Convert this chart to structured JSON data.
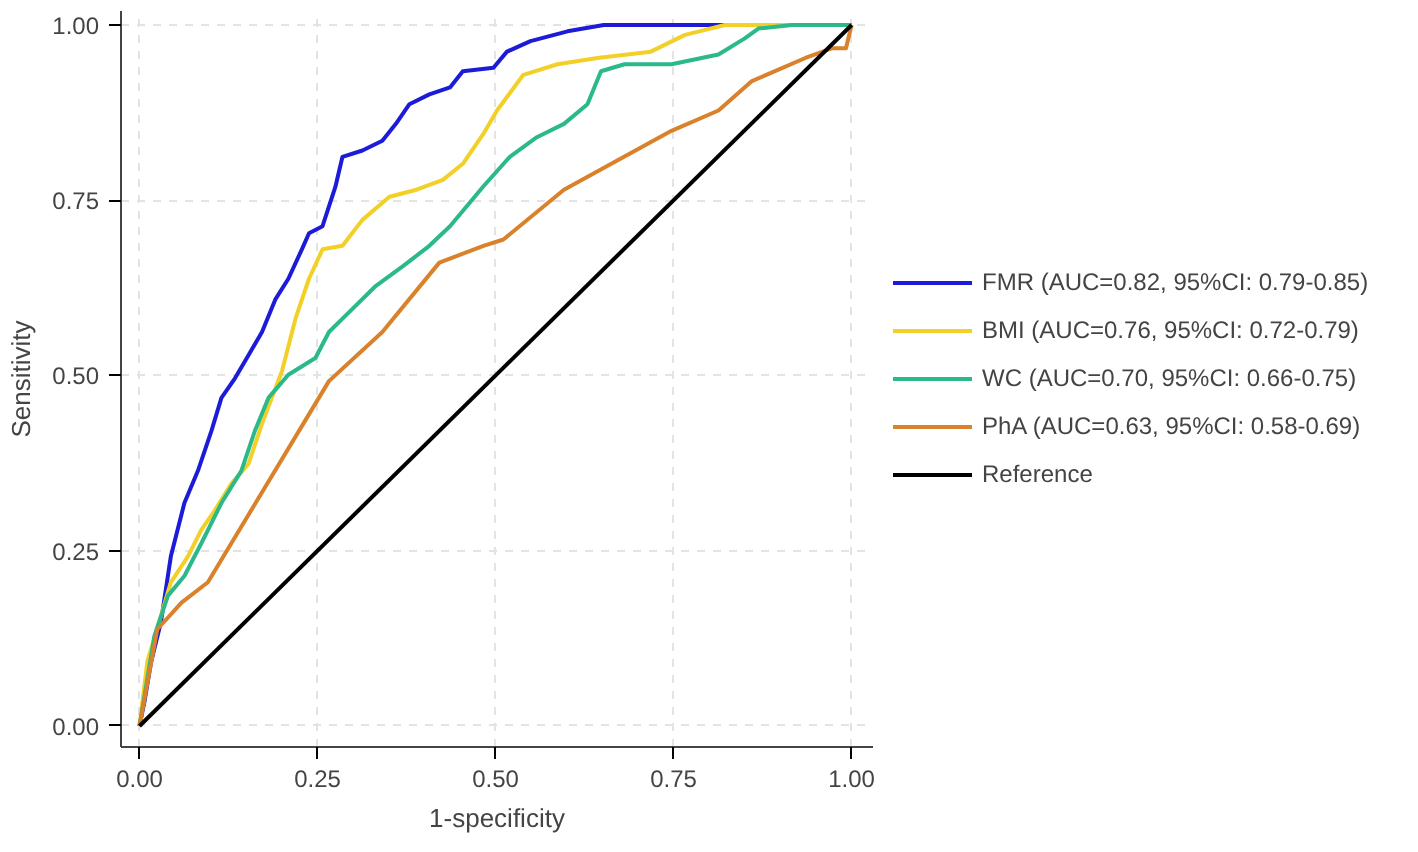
{
  "chart_data": {
    "type": "line",
    "xlabel": "1-specificity",
    "ylabel": "Sensitivity",
    "xlim": [
      -0.026,
      1.03
    ],
    "ylim": [
      -0.03,
      1.02
    ],
    "xticks": [
      {
        "value": 0,
        "label": "0.00"
      },
      {
        "value": 0.25,
        "label": "0.25"
      },
      {
        "value": 0.5,
        "label": "0.50"
      },
      {
        "value": 0.75,
        "label": "0.75"
      },
      {
        "value": 1,
        "label": "1.00"
      }
    ],
    "yticks": [
      {
        "value": 0,
        "label": "0.00"
      },
      {
        "value": 0.25,
        "label": "0.25"
      },
      {
        "value": 0.5,
        "label": "0.50"
      },
      {
        "value": 0.75,
        "label": "0.75"
      },
      {
        "value": 1,
        "label": "1.00"
      }
    ],
    "grid": true,
    "legend": "right",
    "line_style": "solid",
    "series": [
      {
        "name": "FMR (AUC=0.82, 95%CI: 0.79-0.85)",
        "color": "#1c1cd8",
        "x": [
          0,
          0.007,
          0.016,
          0.03,
          0.044,
          0.063,
          0.082,
          0.101,
          0.115,
          0.134,
          0.153,
          0.172,
          0.191,
          0.209,
          0.228,
          0.238,
          0.257,
          0.275,
          0.285,
          0.313,
          0.341,
          0.36,
          0.379,
          0.407,
          0.436,
          0.454,
          0.497,
          0.516,
          0.549,
          0.601,
          0.652,
          1
        ],
        "values": [
          0,
          0.035,
          0.09,
          0.148,
          0.242,
          0.318,
          0.364,
          0.421,
          0.468,
          0.496,
          0.529,
          0.562,
          0.609,
          0.638,
          0.68,
          0.703,
          0.713,
          0.769,
          0.812,
          0.821,
          0.835,
          0.859,
          0.887,
          0.901,
          0.911,
          0.934,
          0.939,
          0.962,
          0.977,
          0.991,
          1,
          1
        ]
      },
      {
        "name": "BMI (AUC=0.76, 95%CI: 0.72-0.79)",
        "color": "#f2d027",
        "x": [
          0,
          0.011,
          0.03,
          0.044,
          0.068,
          0.087,
          0.106,
          0.129,
          0.153,
          0.172,
          0.2,
          0.219,
          0.238,
          0.257,
          0.285,
          0.313,
          0.351,
          0.389,
          0.426,
          0.454,
          0.483,
          0.502,
          0.539,
          0.587,
          0.643,
          0.718,
          0.766,
          0.822,
          1
        ],
        "values": [
          0,
          0.092,
          0.157,
          0.205,
          0.242,
          0.28,
          0.308,
          0.346,
          0.374,
          0.431,
          0.506,
          0.581,
          0.638,
          0.68,
          0.685,
          0.722,
          0.755,
          0.765,
          0.779,
          0.802,
          0.845,
          0.878,
          0.929,
          0.944,
          0.953,
          0.962,
          0.986,
          1,
          1
        ]
      },
      {
        "name": "WC (AUC=0.70, 95%CI: 0.66-0.75)",
        "color": "#2bb98a",
        "x": [
          0,
          0.021,
          0.04,
          0.063,
          0.087,
          0.115,
          0.143,
          0.162,
          0.181,
          0.209,
          0.247,
          0.266,
          0.294,
          0.332,
          0.37,
          0.407,
          0.436,
          0.483,
          0.52,
          0.558,
          0.596,
          0.629,
          0.648,
          0.681,
          0.747,
          0.813,
          0.85,
          0.869,
          0.916,
          1
        ],
        "values": [
          0,
          0.129,
          0.186,
          0.214,
          0.261,
          0.318,
          0.364,
          0.421,
          0.468,
          0.501,
          0.525,
          0.562,
          0.59,
          0.628,
          0.656,
          0.685,
          0.713,
          0.77,
          0.812,
          0.84,
          0.859,
          0.887,
          0.934,
          0.944,
          0.944,
          0.958,
          0.981,
          0.995,
          1,
          1
        ]
      },
      {
        "name": "PhA (AUC=0.63, 95%CI: 0.58-0.69)",
        "color": "#d9822b",
        "x": [
          0,
          0.025,
          0.059,
          0.096,
          0.266,
          0.341,
          0.421,
          0.483,
          0.511,
          0.596,
          0.747,
          0.813,
          0.86,
          0.935,
          0.973,
          0.992,
          1
        ],
        "values": [
          0,
          0.138,
          0.176,
          0.205,
          0.492,
          0.562,
          0.661,
          0.685,
          0.694,
          0.765,
          0.849,
          0.878,
          0.92,
          0.953,
          0.967,
          0.967,
          1
        ]
      },
      {
        "name": "Reference",
        "color": "#000000",
        "x": [
          0,
          1
        ],
        "values": [
          0,
          1
        ]
      }
    ]
  }
}
